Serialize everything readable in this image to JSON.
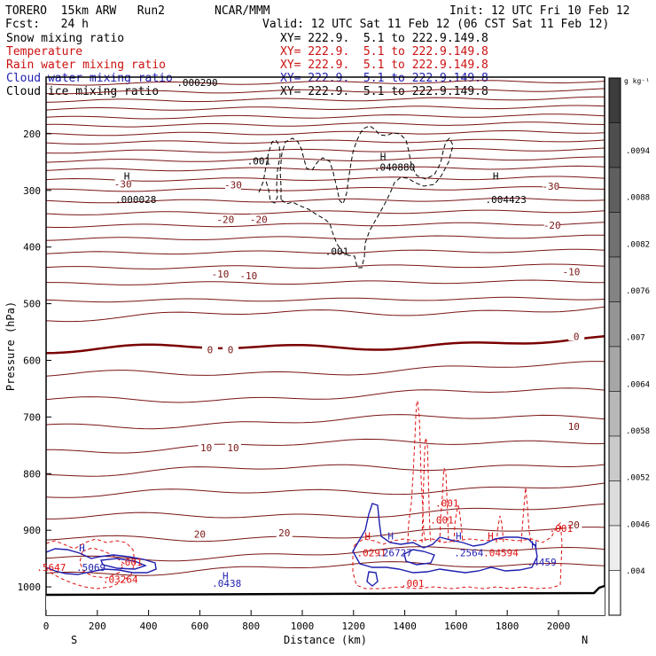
{
  "colors": {
    "temperature": "#7a1414",
    "zero_line": "#7a0000",
    "rain": "#dd1111",
    "cloud_water": "#1f1fb0",
    "cloud_ice": "#000000",
    "legend_snow": "#000000",
    "legend_temp": "#cc1111",
    "legend_rain": "#cc1111",
    "legend_cloud_water": "#1f1fb0",
    "legend_cloud_ice": "#000000"
  },
  "header": {
    "model": "TORERO  15km ARW   Run2",
    "org": "NCAR/MMM",
    "init": "Init: 12 UTC Fri 10 Feb 12",
    "fcst": "Fcst:   24 h",
    "valid": "Valid: 12 UTC Sat 11 Feb 12 (06 CST Sat 11 Feb 12)"
  },
  "legend": [
    {
      "name": "Snow mixing ratio",
      "xy": "XY= 222.9.  5.1 to 222.9.149.8",
      "color": "legend_snow"
    },
    {
      "name": "Temperature",
      "xy": "XY= 222.9.  5.1 to 222.9.149.8",
      "color": "legend_temp"
    },
    {
      "name": "Rain water mixing ratio",
      "xy": "XY= 222.9.  5.1 to 222.9.149.8",
      "color": "legend_rain"
    },
    {
      "name": "Cloud water mixing ratio",
      "xy": "XY= 222.9.  5.1 to 222.9.149.8",
      "color": "legend_cloud_water"
    },
    {
      "name": "Cloud ice mixing ratio",
      "xy": "XY= 222.9.  5.1 to 222.9.149.8",
      "color": "legend_cloud_ice"
    }
  ],
  "chart_data": {
    "type": "contour-cross-section",
    "xlabel": "Distance (km)",
    "ylabel": "Pressure (hPa)",
    "xlim": [
      0,
      2180
    ],
    "ylim": [
      1050,
      100
    ],
    "x_ticks": [
      0,
      200,
      400,
      600,
      800,
      1000,
      1200,
      1400,
      1600,
      1800,
      2000
    ],
    "y_ticks": [
      200,
      300,
      400,
      500,
      600,
      700,
      800,
      900,
      1000
    ],
    "x_end_labels": {
      "left": "S",
      "right": "N"
    },
    "colorbar": {
      "unit": "g kg⁻¹",
      "tick_labels": [
        ".004",
        ".0046",
        ".0052",
        ".0058",
        ".0064",
        ".007",
        ".0076",
        ".0082",
        ".0088",
        ".0094"
      ]
    },
    "temperature_lines_hpa": [
      112,
      127,
      142,
      157,
      172,
      186,
      201,
      216,
      232,
      248,
      264,
      282,
      300,
      320,
      341,
      363,
      386,
      411,
      437,
      465,
      495,
      526,
      584,
      628,
      672,
      716,
      758,
      800,
      840,
      880,
      918,
      950,
      975
    ],
    "temperature_labels": [
      {
        "text": "-30",
        "x": 300,
        "p": 290
      },
      {
        "text": "-30",
        "x": 730,
        "p": 292
      },
      {
        "text": "-30",
        "x": 1970,
        "p": 294
      },
      {
        "text": "-20",
        "x": 700,
        "p": 353
      },
      {
        "text": "-20",
        "x": 830,
        "p": 353
      },
      {
        "text": "-20",
        "x": 1975,
        "p": 363
      },
      {
        "text": "-10",
        "x": 680,
        "p": 449
      },
      {
        "text": "-10",
        "x": 790,
        "p": 452
      },
      {
        "text": "-10",
        "x": 2050,
        "p": 445
      },
      {
        "text": "0",
        "x": 640,
        "p": 583
      },
      {
        "text": "0",
        "x": 720,
        "p": 583
      },
      {
        "text": "0",
        "x": 2070,
        "p": 559
      },
      {
        "text": "10",
        "x": 625,
        "p": 756
      },
      {
        "text": "10",
        "x": 730,
        "p": 756
      },
      {
        "text": "10",
        "x": 2060,
        "p": 718
      },
      {
        "text": "20",
        "x": 600,
        "p": 908
      },
      {
        "text": "20",
        "x": 930,
        "p": 906
      },
      {
        "text": "20",
        "x": 2060,
        "p": 892
      }
    ],
    "extrema_labels": [
      {
        "text": ".000290",
        "x": 590,
        "p": 116,
        "color": "cloud_ice"
      },
      {
        "text": "H",
        "x": 315,
        "p": 281,
        "color": "cloud_ice"
      },
      {
        "text": ".000028",
        "x": 350,
        "p": 322,
        "color": "cloud_ice"
      },
      {
        "text": ".001",
        "x": 830,
        "p": 254,
        "color": "cloud_ice"
      },
      {
        "text": "H",
        "x": 1315,
        "p": 246,
        "color": "cloud_ice"
      },
      {
        "text": ".040880",
        "x": 1360,
        "p": 265,
        "color": "cloud_ice"
      },
      {
        "text": ".001",
        "x": 1135,
        "p": 414,
        "color": "cloud_ice"
      },
      {
        "text": "H",
        "x": 1755,
        "p": 281,
        "color": "cloud_ice"
      },
      {
        "text": ".004423",
        "x": 1795,
        "p": 322,
        "color": "cloud_ice"
      },
      {
        "text": "H",
        "x": 140,
        "p": 937,
        "color": "cloud_water"
      },
      {
        "text": ".5069",
        "x": 175,
        "p": 972,
        "color": "cloud_water"
      },
      {
        "text": ".5647",
        "x": 20,
        "p": 972,
        "color": "rain"
      },
      {
        "text": ".001",
        "x": 330,
        "p": 962,
        "color": "rain"
      },
      {
        "text": ".03264",
        "x": 290,
        "p": 993,
        "color": "rain"
      },
      {
        "text": "H",
        "x": 700,
        "p": 987,
        "color": "cloud_water"
      },
      {
        "text": ".0438",
        "x": 705,
        "p": 1000,
        "color": "cloud_water"
      },
      {
        "text": "H",
        "x": 1255,
        "p": 916,
        "color": "rain"
      },
      {
        "text": "H",
        "x": 1345,
        "p": 916,
        "color": "cloud_water"
      },
      {
        "text": ".0291",
        "x": 1270,
        "p": 946,
        "color": "rain"
      },
      {
        "text": ".26727",
        "x": 1360,
        "p": 946,
        "color": "cloud_water"
      },
      {
        "text": ".001",
        "x": 1565,
        "p": 858,
        "color": "rain"
      },
      {
        "text": ".001",
        "x": 1545,
        "p": 888,
        "color": "rain"
      },
      {
        "text": "H",
        "x": 1610,
        "p": 916,
        "color": "cloud_water"
      },
      {
        "text": ".2564",
        "x": 1650,
        "p": 946,
        "color": "cloud_water"
      },
      {
        "text": "H",
        "x": 1735,
        "p": 916,
        "color": "rain"
      },
      {
        "text": ".04594",
        "x": 1775,
        "p": 946,
        "color": "rain"
      },
      {
        "text": "H",
        "x": 1905,
        "p": 932,
        "color": "cloud_water"
      },
      {
        "text": ".4459",
        "x": 1935,
        "p": 962,
        "color": "cloud_water"
      },
      {
        "text": ".001",
        "x": 2010,
        "p": 903,
        "color": "rain"
      },
      {
        "text": ".001",
        "x": 1430,
        "p": 1000,
        "color": "rain"
      }
    ]
  }
}
